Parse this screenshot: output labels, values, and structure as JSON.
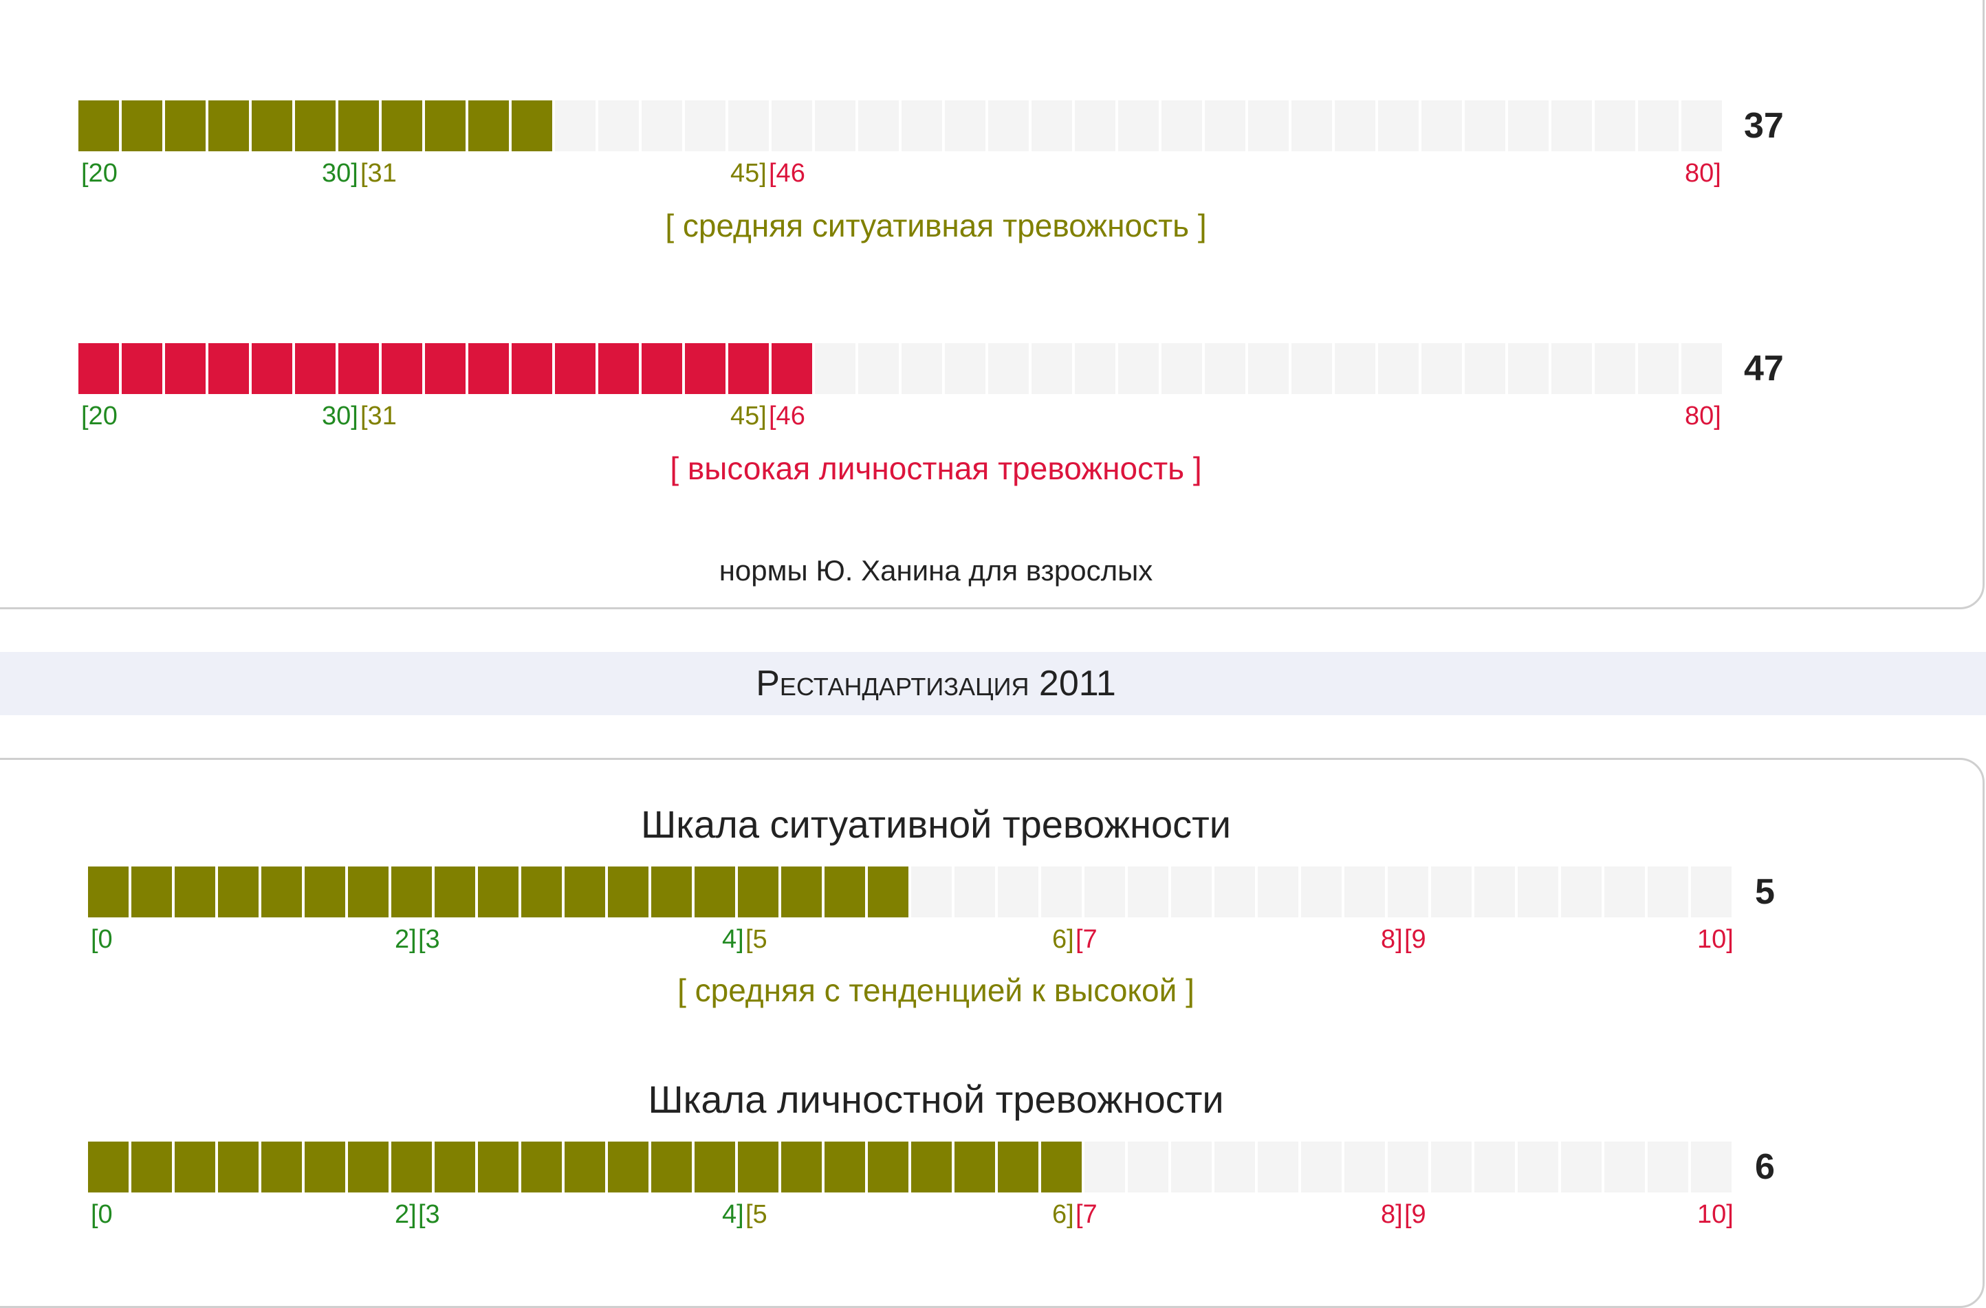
{
  "colors": {
    "green": "#218a21",
    "olive": "#808000",
    "red": "#dc143c",
    "empty": "#f4f4f4",
    "band": "#eef0f8"
  },
  "khanin": {
    "situational": {
      "value": "37",
      "score": 37,
      "min": 20,
      "max": 80,
      "filled_cells": 11,
      "total_cells": 38,
      "fill_color": "olive",
      "ticks": [
        {
          "text": "[20",
          "color": "green"
        },
        {
          "text": "30]",
          "color": "green"
        },
        {
          "text": "[31",
          "color": "olive"
        },
        {
          "text": "45]",
          "color": "olive"
        },
        {
          "text": "[46",
          "color": "red"
        },
        {
          "text": "80]",
          "color": "red"
        }
      ],
      "verdict": "[ средняя ситуативная тревожность ]",
      "verdict_color": "olive"
    },
    "personal": {
      "value": "47",
      "score": 47,
      "min": 20,
      "max": 80,
      "filled_cells": 17,
      "total_cells": 38,
      "fill_color": "red",
      "ticks": [
        {
          "text": "[20",
          "color": "green"
        },
        {
          "text": "30]",
          "color": "green"
        },
        {
          "text": "[31",
          "color": "olive"
        },
        {
          "text": "45]",
          "color": "olive"
        },
        {
          "text": "[46",
          "color": "red"
        },
        {
          "text": "80]",
          "color": "red"
        }
      ],
      "verdict": "[ высокая личностная тревожность ]",
      "verdict_color": "red"
    },
    "norms_note": "нормы Ю. Ханина для взрослых"
  },
  "restandard": {
    "section_title": "Рестандартизация 2011",
    "situational": {
      "title": "Шкала ситуативной тревожности",
      "value": "5",
      "score": 5,
      "filled_cells": 19,
      "total_cells": 38,
      "fill_color": "olive",
      "ticks": [
        {
          "text": "[0",
          "color": "green"
        },
        {
          "text": "2]",
          "color": "green"
        },
        {
          "text": "[3",
          "color": "green"
        },
        {
          "text": "4]",
          "color": "green"
        },
        {
          "text": "[5",
          "color": "olive"
        },
        {
          "text": "6]",
          "color": "olive"
        },
        {
          "text": "[7",
          "color": "red"
        },
        {
          "text": "8]",
          "color": "red"
        },
        {
          "text": "[9",
          "color": "red"
        },
        {
          "text": "10]",
          "color": "red"
        }
      ],
      "verdict": "[ средняя с тенденцией к высокой ]",
      "verdict_color": "olive"
    },
    "personal": {
      "title": "Шкала личностной тревожности",
      "value": "6",
      "score": 6,
      "filled_cells": 23,
      "total_cells": 38,
      "fill_color": "olive",
      "ticks": [
        {
          "text": "[0",
          "color": "green"
        },
        {
          "text": "2]",
          "color": "green"
        },
        {
          "text": "[3",
          "color": "green"
        },
        {
          "text": "4]",
          "color": "green"
        },
        {
          "text": "[5",
          "color": "olive"
        },
        {
          "text": "6]",
          "color": "olive"
        },
        {
          "text": "[7",
          "color": "red"
        },
        {
          "text": "8]",
          "color": "red"
        },
        {
          "text": "[9",
          "color": "red"
        },
        {
          "text": "10]",
          "color": "red"
        }
      ]
    }
  }
}
